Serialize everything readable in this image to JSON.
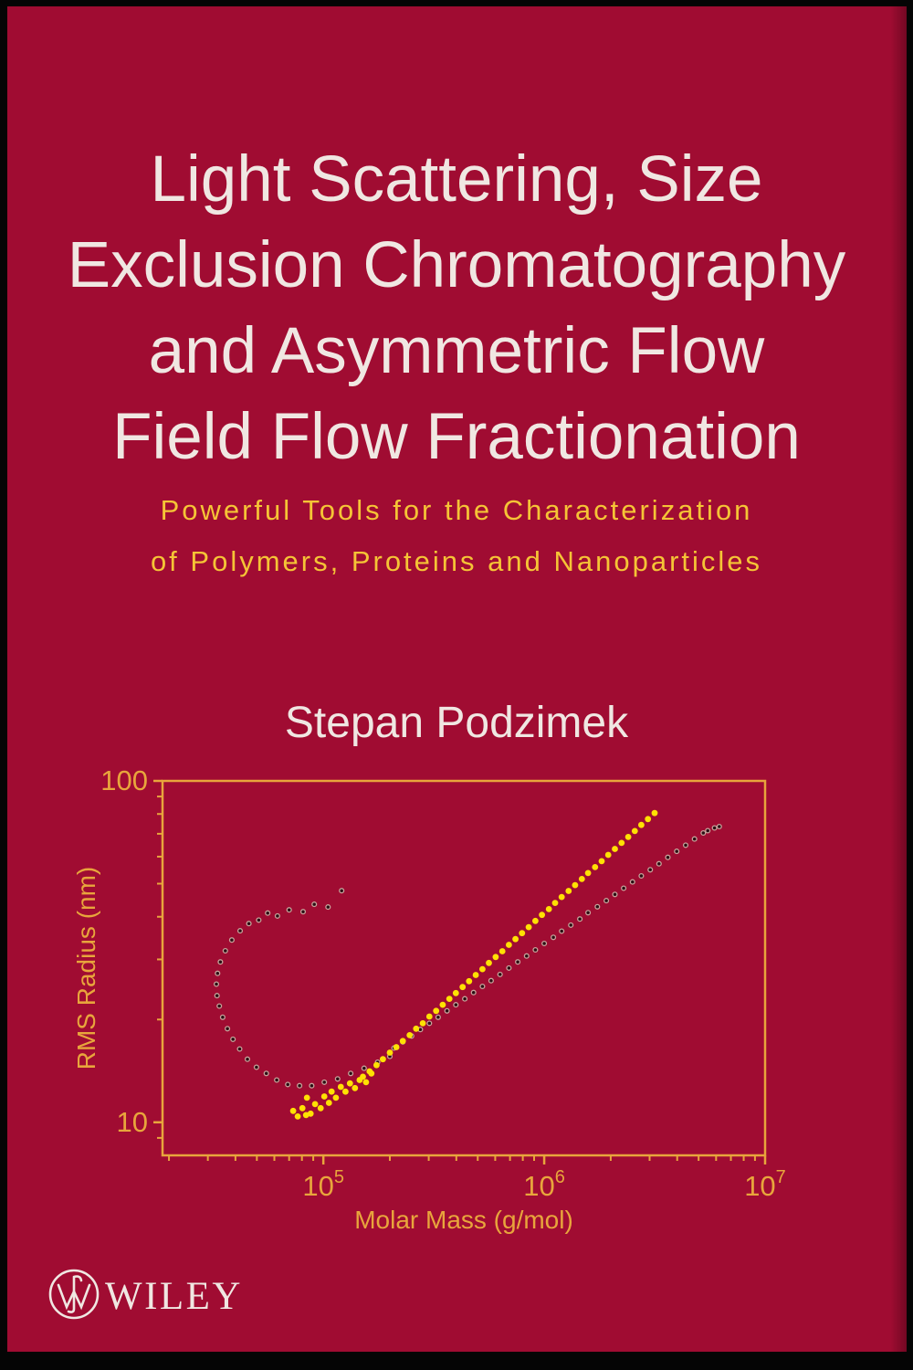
{
  "cover": {
    "title_lines": [
      "Light Scattering, Size",
      "Exclusion Chromatography",
      "and Asymmetric Flow",
      "Field Flow Fractionation"
    ],
    "subtitle_lines": [
      "Powerful Tools for the Characterization",
      "of Polymers, Proteins and Nanoparticles"
    ],
    "author": "Stepan Podzimek",
    "publisher_name": "WILEY",
    "colors": {
      "background": "#A00C32",
      "border": "#050505",
      "title_text": "#F0E7E2",
      "subtitle_text": "#F5C436",
      "axis": "#E8A53C",
      "yellow_marker": "#FFE103",
      "dark_marker_fill": "#2B0E14",
      "dark_marker_ring": "#C7A39B"
    }
  },
  "chart_data": {
    "type": "scatter",
    "title": "",
    "xlabel": "Molar Mass (g/mol)",
    "ylabel": "RMS Radius (nm)",
    "x_scale": "log",
    "y_scale": "log",
    "xlim": [
      18700,
      10000000
    ],
    "ylim": [
      8,
      100
    ],
    "grid": false,
    "legend": "none",
    "axis_color": "#E8A53C",
    "x_ticks": [
      {
        "base": "10",
        "exp": "5",
        "value": 100000
      },
      {
        "base": "10",
        "exp": "6",
        "value": 1000000
      },
      {
        "base": "10",
        "exp": "7",
        "value": 10000000
      }
    ],
    "y_ticks": [
      {
        "label": "100",
        "value": 100
      },
      {
        "label": "10",
        "value": 10
      }
    ],
    "series": [
      {
        "name": "branched-polymer-dark-circles",
        "marker": "open-circle",
        "color": "#2B0E14",
        "ring": "#C7A39B",
        "radius": 2.4,
        "points": [
          [
            121000,
            47.7
          ],
          [
            105000,
            42.7
          ],
          [
            91000,
            43.5
          ],
          [
            81000,
            41.4
          ],
          [
            70000,
            41.9
          ],
          [
            62000,
            40.2
          ],
          [
            56000,
            41.0
          ],
          [
            51000,
            39.1
          ],
          [
            46000,
            38.2
          ],
          [
            42000,
            36.4
          ],
          [
            38500,
            34.2
          ],
          [
            36000,
            31.8
          ],
          [
            34200,
            29.5
          ],
          [
            33200,
            27.3
          ],
          [
            32800,
            25.4
          ],
          [
            33000,
            23.5
          ],
          [
            33800,
            21.9
          ],
          [
            35000,
            20.3
          ],
          [
            36800,
            18.8
          ],
          [
            39000,
            17.5
          ],
          [
            41800,
            16.4
          ],
          [
            45300,
            15.3
          ],
          [
            49800,
            14.5
          ],
          [
            55200,
            13.9
          ],
          [
            61500,
            13.3
          ],
          [
            69000,
            12.9
          ],
          [
            78000,
            12.8
          ],
          [
            88600,
            12.8
          ],
          [
            101000,
            13.1
          ],
          [
            116000,
            13.4
          ],
          [
            133000,
            13.9
          ],
          [
            153000,
            14.4
          ],
          [
            176000,
            15.0
          ],
          [
            200000,
            15.6
          ],
          [
            209000,
            16.5
          ],
          [
            229000,
            17.2
          ],
          [
            251000,
            17.9
          ],
          [
            275000,
            18.7
          ],
          [
            302000,
            19.5
          ],
          [
            331000,
            20.3
          ],
          [
            363000,
            21.2
          ],
          [
            398000,
            22.1
          ],
          [
            437000,
            23.0
          ],
          [
            479000,
            24.0
          ],
          [
            525000,
            25.0
          ],
          [
            575000,
            26.0
          ],
          [
            631000,
            27.1
          ],
          [
            692000,
            28.3
          ],
          [
            759000,
            29.5
          ],
          [
            832000,
            30.7
          ],
          [
            912000,
            32.0
          ],
          [
            1000000,
            33.4
          ],
          [
            1100000,
            34.8
          ],
          [
            1200000,
            36.3
          ],
          [
            1320000,
            37.8
          ],
          [
            1450000,
            39.4
          ],
          [
            1580000,
            41.1
          ],
          [
            1740000,
            42.8
          ],
          [
            1910000,
            44.6
          ],
          [
            2090000,
            46.5
          ],
          [
            2290000,
            48.5
          ],
          [
            2510000,
            50.6
          ],
          [
            2750000,
            52.7
          ],
          [
            3020000,
            54.9
          ],
          [
            3310000,
            57.2
          ],
          [
            3630000,
            59.7
          ],
          [
            3980000,
            62.2
          ],
          [
            4370000,
            64.8
          ],
          [
            4790000,
            67.6
          ],
          [
            5250000,
            70.4
          ],
          [
            5500000,
            71.5
          ],
          [
            5900000,
            72.8
          ],
          [
            6200000,
            73.5
          ]
        ]
      },
      {
        "name": "linear-polymer-yellow-circles",
        "marker": "filled-circle",
        "color": "#FFE103",
        "radius": 3.4,
        "points": [
          [
            73000,
            10.8
          ],
          [
            76600,
            10.4
          ],
          [
            80400,
            11.0
          ],
          [
            83500,
            10.5
          ],
          [
            87600,
            10.6
          ],
          [
            84300,
            11.8
          ],
          [
            91700,
            11.3
          ],
          [
            97200,
            11.0
          ],
          [
            101000,
            11.9
          ],
          [
            106000,
            11.4
          ],
          [
            109000,
            12.3
          ],
          [
            114000,
            11.8
          ],
          [
            120000,
            12.7
          ],
          [
            126000,
            12.3
          ],
          [
            132000,
            13.0
          ],
          [
            139000,
            12.6
          ],
          [
            146000,
            13.3
          ],
          [
            156000,
            13.1
          ],
          [
            165000,
            13.9
          ],
          [
            151000,
            13.6
          ],
          [
            162000,
            14.1
          ],
          [
            174000,
            14.7
          ],
          [
            186000,
            15.3
          ],
          [
            200000,
            16.0
          ],
          [
            214000,
            16.6
          ],
          [
            229000,
            17.3
          ],
          [
            246000,
            18.0
          ],
          [
            263000,
            18.8
          ],
          [
            282000,
            19.5
          ],
          [
            302000,
            20.4
          ],
          [
            324000,
            21.2
          ],
          [
            347000,
            22.1
          ],
          [
            372000,
            23.0
          ],
          [
            398000,
            23.9
          ],
          [
            427000,
            24.9
          ],
          [
            457000,
            25.9
          ],
          [
            490000,
            27.0
          ],
          [
            525000,
            28.1
          ],
          [
            562000,
            29.3
          ],
          [
            603000,
            30.5
          ],
          [
            646000,
            31.7
          ],
          [
            692000,
            33.1
          ],
          [
            741000,
            34.4
          ],
          [
            794000,
            35.8
          ],
          [
            851000,
            37.3
          ],
          [
            912000,
            38.9
          ],
          [
            977000,
            40.5
          ],
          [
            1050000,
            42.1
          ],
          [
            1120000,
            43.9
          ],
          [
            1200000,
            45.7
          ],
          [
            1290000,
            47.6
          ],
          [
            1380000,
            49.5
          ],
          [
            1480000,
            51.6
          ],
          [
            1580000,
            53.7
          ],
          [
            1700000,
            55.9
          ],
          [
            1820000,
            58.2
          ],
          [
            1950000,
            60.7
          ],
          [
            2090000,
            63.2
          ],
          [
            2240000,
            65.8
          ],
          [
            2400000,
            68.5
          ],
          [
            2570000,
            71.3
          ],
          [
            2750000,
            74.3
          ],
          [
            2950000,
            77.3
          ],
          [
            3160000,
            80.5
          ]
        ]
      }
    ]
  }
}
